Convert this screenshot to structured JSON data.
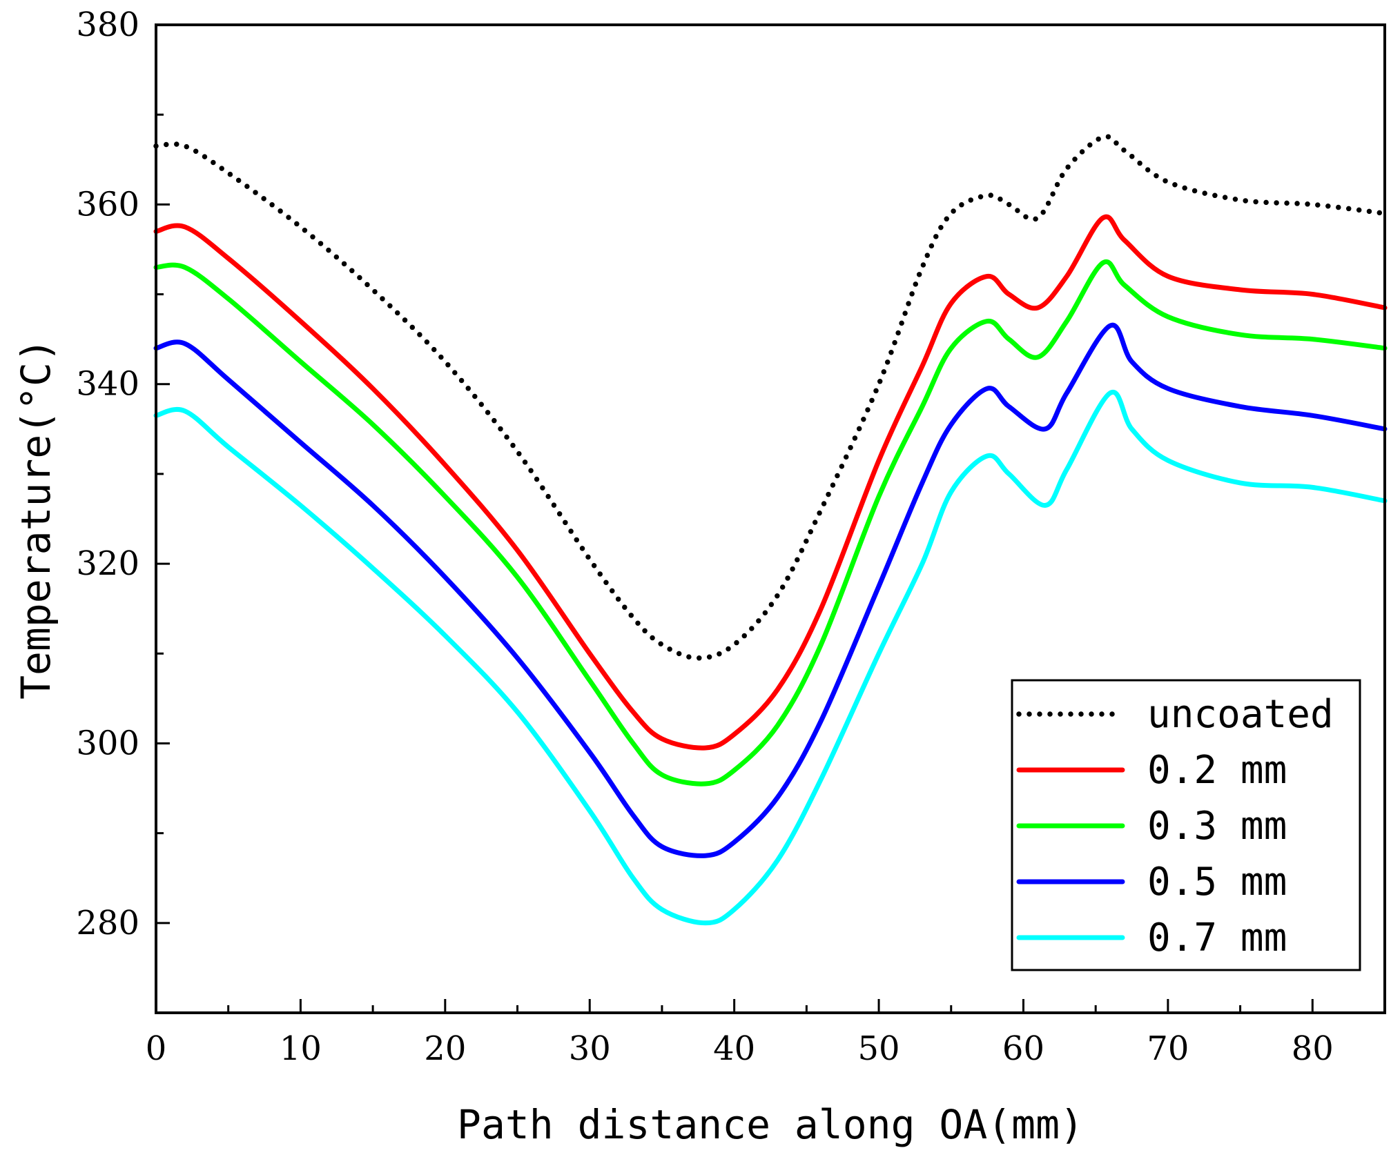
{
  "chart_data": {
    "type": "line",
    "title": "",
    "xlabel": "Path distance along OA(mm)",
    "ylabel": "Temperature(°C)",
    "xlim": [
      0,
      85
    ],
    "ylim": [
      270,
      380
    ],
    "xticks": [
      0,
      10,
      20,
      30,
      40,
      50,
      60,
      70,
      80
    ],
    "yticks": [
      280,
      300,
      320,
      340,
      360,
      380
    ],
    "grid": false,
    "legend_position": "bottom-right",
    "series": [
      {
        "name": "uncoated",
        "color": "#000000",
        "style": "dotted",
        "x": [
          0,
          2,
          5,
          10,
          15,
          20,
          25,
          30,
          33,
          35,
          37.5,
          40,
          43,
          46,
          50,
          53,
          55,
          57.5,
          59,
          61,
          63,
          65.5,
          67,
          70,
          75,
          80,
          85
        ],
        "y": [
          366.5,
          366.5,
          363.5,
          357.5,
          350.5,
          342.5,
          332.5,
          320.5,
          314,
          311,
          309.5,
          311,
          316.5,
          326,
          340,
          353,
          359,
          361,
          360,
          358.5,
          364,
          367.5,
          366,
          362.5,
          360.5,
          360,
          359
        ]
      },
      {
        "name": "0.2 mm",
        "color": "#ff0000",
        "style": "solid",
        "x": [
          0,
          2,
          5,
          10,
          15,
          20,
          25,
          30,
          33,
          35,
          38,
          40,
          43,
          46,
          50,
          53,
          55,
          57.5,
          59,
          61,
          63,
          65.5,
          67,
          70,
          75,
          80,
          85
        ],
        "y": [
          357,
          357.5,
          354,
          347,
          339.5,
          331,
          321.5,
          310,
          303.5,
          300.5,
          299.5,
          301,
          306,
          315,
          331.5,
          342,
          349,
          352,
          350,
          348.5,
          352,
          358.5,
          356,
          352,
          350.5,
          350,
          348.5
        ]
      },
      {
        "name": "0.3 mm",
        "color": "#00ff00",
        "style": "solid",
        "x": [
          0,
          2,
          5,
          10,
          15,
          20,
          25,
          30,
          33,
          35,
          38,
          40,
          43,
          46,
          50,
          53,
          55,
          57.5,
          59,
          61,
          63,
          65.5,
          67,
          70,
          75,
          80,
          85
        ],
        "y": [
          353,
          353,
          349.5,
          342.5,
          335.5,
          327.5,
          318.5,
          307,
          300,
          296.5,
          295.5,
          297,
          302,
          311,
          327.5,
          337.5,
          344,
          347,
          345,
          343,
          347,
          353.5,
          351,
          347.5,
          345.5,
          345,
          344
        ]
      },
      {
        "name": "0.5 mm",
        "color": "#0000ff",
        "style": "solid",
        "x": [
          0,
          2,
          5,
          10,
          15,
          20,
          25,
          30,
          33,
          35,
          38,
          40,
          43,
          46,
          50,
          53,
          55,
          57.5,
          59,
          61.5,
          63,
          66,
          67.5,
          70,
          75,
          80,
          85
        ],
        "y": [
          344,
          344.5,
          340.5,
          333.5,
          326.5,
          318.5,
          309.5,
          299,
          292,
          288.5,
          287.5,
          289,
          294,
          302.5,
          317.5,
          329,
          335.5,
          339.5,
          337.5,
          335,
          339,
          346.5,
          342.5,
          339.5,
          337.5,
          336.5,
          335
        ]
      },
      {
        "name": "0.7 mm",
        "color": "#00ffff",
        "style": "solid",
        "x": [
          0,
          2,
          5,
          10,
          15,
          20,
          25,
          30,
          33,
          35,
          38,
          40,
          43,
          46,
          50,
          53,
          55,
          57.5,
          59,
          61.5,
          63,
          66,
          67.5,
          70,
          75,
          80,
          85
        ],
        "y": [
          336.5,
          337,
          333,
          326.5,
          319.5,
          312,
          303.5,
          292.5,
          285,
          281.5,
          280,
          281.5,
          287,
          296,
          310,
          320,
          328,
          332,
          330,
          326.5,
          330.5,
          339,
          335,
          331.5,
          329,
          328.5,
          327
        ]
      }
    ]
  }
}
